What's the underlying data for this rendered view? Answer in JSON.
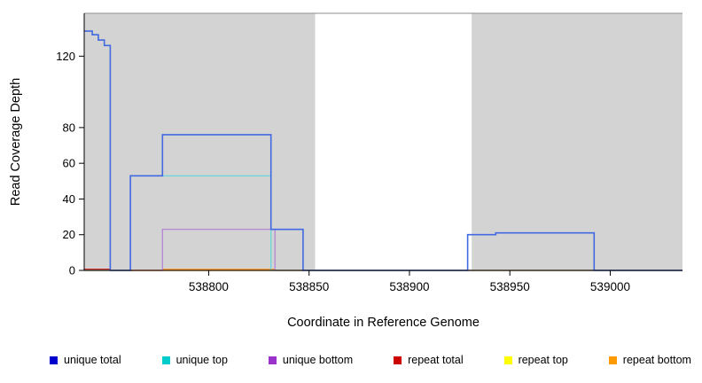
{
  "chart_data": {
    "type": "line",
    "title": "",
    "xlabel": "Coordinate in Reference Genome",
    "ylabel": "Read Coverage Depth",
    "xlim": [
      538738,
      539036
    ],
    "ylim": [
      0,
      144
    ],
    "xticks": [
      538800,
      538850,
      538900,
      538950,
      539000
    ],
    "yticks": [
      0,
      20,
      40,
      60,
      80,
      120
    ],
    "grid": false,
    "legend_position": "bottom",
    "shaded_regions": [
      {
        "x0": 538738,
        "x1": 538853,
        "color": "#d3d3d3"
      },
      {
        "x0": 538931,
        "x1": 539036,
        "color": "#d3d3d3"
      }
    ],
    "legend": [
      {
        "label": "unique total",
        "color": "#0000CC"
      },
      {
        "label": "unique top",
        "color": "#00CCCC"
      },
      {
        "label": "unique bottom",
        "color": "#9933CC"
      },
      {
        "label": "repeat total",
        "color": "#CC0000"
      },
      {
        "label": "repeat top",
        "color": "#FFFF00"
      },
      {
        "label": "repeat bottom",
        "color": "#FF9900"
      }
    ],
    "series": [
      {
        "name": "repeat top",
        "color": "#FFFF00",
        "width": 1.2,
        "points": [
          [
            538738,
            0
          ],
          [
            539036,
            0
          ]
        ]
      },
      {
        "name": "repeat total",
        "color": "#CC2222",
        "width": 1.2,
        "points": [
          [
            538738,
            0.7
          ],
          [
            538751,
            0.7
          ],
          [
            538751,
            0
          ],
          [
            539036,
            0
          ]
        ]
      },
      {
        "name": "repeat bottom",
        "color": "#FF9933",
        "width": 1.2,
        "points": [
          [
            538738,
            0
          ],
          [
            538777,
            0
          ],
          [
            538777,
            0.7
          ],
          [
            538833,
            0.7
          ],
          [
            538833,
            0
          ],
          [
            539036,
            0
          ]
        ]
      },
      {
        "name": "unique bottom",
        "color": "#B27FD8",
        "width": 1.2,
        "points": [
          [
            538738,
            0
          ],
          [
            538777,
            0
          ],
          [
            538777,
            23
          ],
          [
            538833,
            23
          ],
          [
            538833,
            0
          ],
          [
            539036,
            0
          ]
        ]
      },
      {
        "name": "unique top",
        "color": "#5FD8D8",
        "width": 1.2,
        "points": [
          [
            538738,
            0
          ],
          [
            538761,
            0
          ],
          [
            538761,
            53
          ],
          [
            538831,
            53
          ],
          [
            538831,
            0
          ],
          [
            539036,
            0
          ]
        ]
      },
      {
        "name": "unique total",
        "color": "#4169E1",
        "width": 1.6,
        "points": [
          [
            538738,
            134
          ],
          [
            538742,
            134
          ],
          [
            538742,
            132
          ],
          [
            538745,
            132
          ],
          [
            538745,
            129
          ],
          [
            538748,
            129
          ],
          [
            538748,
            126
          ],
          [
            538751,
            126
          ],
          [
            538751,
            0
          ],
          [
            538761,
            0
          ],
          [
            538761,
            53
          ],
          [
            538777,
            53
          ],
          [
            538777,
            76
          ],
          [
            538831,
            76
          ],
          [
            538831,
            23
          ],
          [
            538847,
            23
          ],
          [
            538847,
            0
          ],
          [
            538929,
            0
          ],
          [
            538929,
            20
          ],
          [
            538943,
            20
          ],
          [
            538943,
            21
          ],
          [
            538992,
            21
          ],
          [
            538992,
            0
          ],
          [
            539036,
            0
          ]
        ]
      }
    ]
  }
}
